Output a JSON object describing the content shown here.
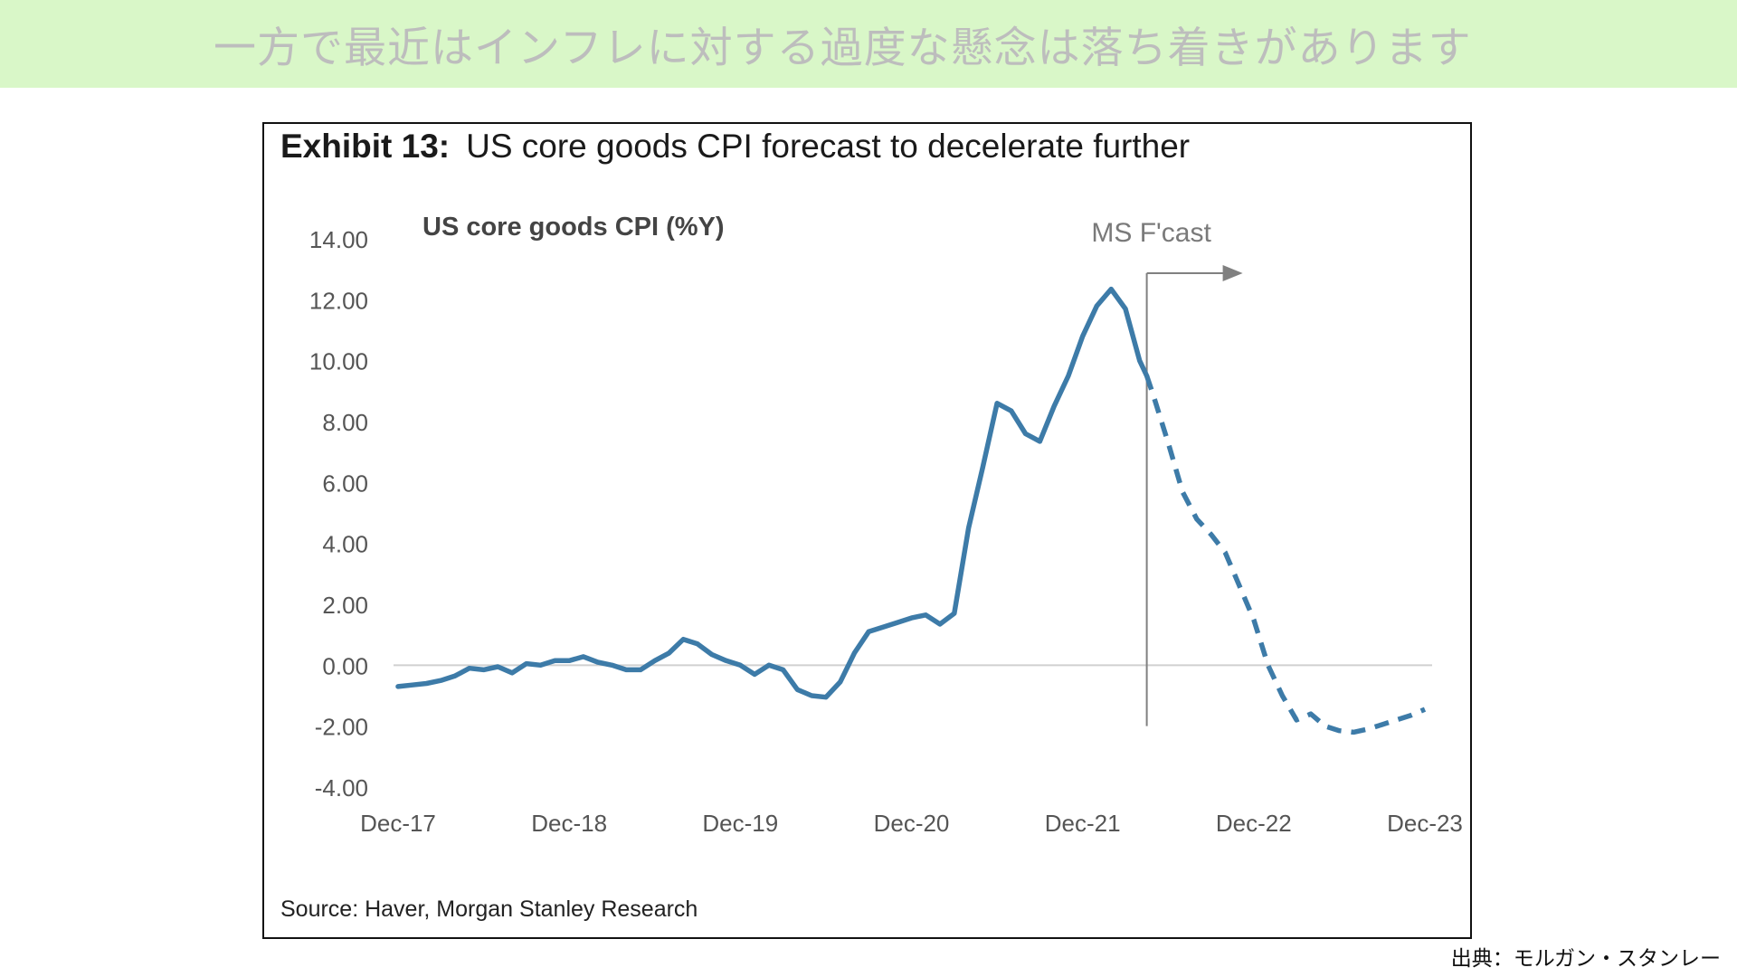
{
  "banner": {
    "text": "一方で最近はインフレに対する過度な懸念は落ち着きがあります"
  },
  "exhibit": {
    "label": "Exhibit 13:",
    "title": "US core goods CPI forecast to decelerate further",
    "source": "Source: Haver, Morgan Stanley Research"
  },
  "credit": "出典：モルガン・スタンレー",
  "colors": {
    "banner_bg": "#d9f7c8",
    "line": "#3d7ba8",
    "zero_line": "#d0d0d0",
    "forecast_marker": "#808080"
  },
  "chart_data": {
    "type": "line",
    "chart_label": "US core goods CPI (%Y)",
    "ylim": [
      -4,
      14
    ],
    "y_ticks": [
      "14.00",
      "12.00",
      "10.00",
      "8.00",
      "6.00",
      "4.00",
      "2.00",
      "0.00",
      "-2.00",
      "-4.00"
    ],
    "y_tick_values": [
      14,
      12,
      10,
      8,
      6,
      4,
      2,
      0,
      -2,
      -4
    ],
    "x_ticks": [
      "Dec-17",
      "Dec-18",
      "Dec-19",
      "Dec-20",
      "Dec-21",
      "Dec-22",
      "Dec-23"
    ],
    "x_tick_months": [
      0,
      12,
      24,
      36,
      48,
      60,
      72
    ],
    "forecast_annotation": "MS F'cast",
    "forecast_start_month": 52.5,
    "grid": false,
    "legend": "none",
    "series": [
      {
        "style": "solid",
        "months": [
          0,
          1,
          2,
          3,
          4,
          5,
          6,
          7,
          8,
          9,
          10,
          11,
          12,
          13,
          14,
          15,
          16,
          17,
          18,
          19,
          20,
          21,
          22,
          23,
          24,
          25,
          26,
          27,
          28,
          29,
          30,
          31,
          32,
          33,
          34,
          35,
          36,
          37,
          38,
          39,
          40,
          41,
          42,
          43,
          44,
          45,
          46,
          47,
          48,
          49,
          50,
          51,
          52,
          52.5
        ],
        "values": [
          -0.7,
          -0.65,
          -0.6,
          -0.5,
          -0.35,
          -0.1,
          -0.15,
          -0.05,
          -0.25,
          0.05,
          0.0,
          0.15,
          0.15,
          0.28,
          0.1,
          0.0,
          -0.15,
          -0.15,
          0.15,
          0.4,
          0.85,
          0.7,
          0.35,
          0.15,
          0.0,
          -0.3,
          0.0,
          -0.15,
          -0.8,
          -1.0,
          -1.05,
          -0.55,
          0.4,
          1.1,
          1.25,
          1.4,
          1.55,
          1.65,
          1.35,
          1.7,
          4.5,
          6.5,
          8.6,
          8.35,
          7.6,
          7.35,
          8.5,
          9.5,
          10.8,
          11.8,
          12.35,
          11.7,
          10.0,
          9.5
        ]
      },
      {
        "style": "dashed",
        "months": [
          52.5,
          53,
          54,
          55,
          56,
          57,
          58,
          59,
          60,
          61,
          62,
          63,
          64,
          65,
          66,
          67,
          68,
          69,
          70,
          71,
          72
        ],
        "values": [
          9.5,
          8.8,
          7.3,
          5.7,
          4.8,
          4.3,
          3.7,
          2.6,
          1.5,
          0.0,
          -1.0,
          -1.8,
          -1.6,
          -2.0,
          -2.15,
          -2.2,
          -2.1,
          -1.95,
          -1.8,
          -1.65,
          -1.45
        ]
      }
    ]
  }
}
